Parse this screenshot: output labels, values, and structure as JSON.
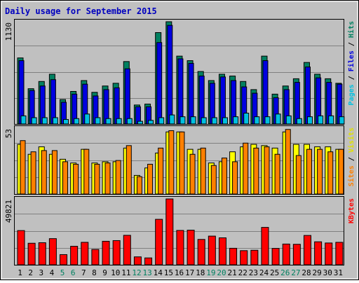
{
  "chart_data": [
    {
      "type": "bar",
      "title": "Daily usage for September 2015",
      "ymax_label": "1130",
      "ylim": [
        0,
        1130
      ],
      "right_label_parts": [
        {
          "text": "Pages",
          "color": "#00c0e0"
        },
        {
          "text": " / ",
          "color": "#000000"
        },
        {
          "text": "Files",
          "color": "#0000e0"
        },
        {
          "text": " / ",
          "color": "#000000"
        },
        {
          "text": "Hits",
          "color": "#008060"
        }
      ],
      "categories": [
        "1",
        "2",
        "3",
        "4",
        "5",
        "6",
        "7",
        "8",
        "9",
        "10",
        "11",
        "12",
        "13",
        "14",
        "15",
        "16",
        "17",
        "18",
        "19",
        "20",
        "21",
        "22",
        "23",
        "24",
        "25",
        "26",
        "27",
        "28",
        "29",
        "30",
        "31"
      ],
      "weekend_days": [
        "5",
        "6",
        "12",
        "13",
        "19",
        "20",
        "26",
        "27"
      ],
      "series": [
        {
          "name": "Hits",
          "color": "#008060",
          "values": [
            730,
            390,
            470,
            550,
            270,
            360,
            480,
            350,
            420,
            450,
            690,
            210,
            220,
            1010,
            1130,
            750,
            700,
            580,
            480,
            550,
            530,
            470,
            380,
            750,
            330,
            420,
            500,
            680,
            550,
            500,
            450
          ]
        },
        {
          "name": "Files",
          "color": "#0000e0",
          "values": [
            700,
            370,
            420,
            490,
            240,
            330,
            440,
            310,
            380,
            400,
            610,
            190,
            190,
            900,
            1090,
            720,
            670,
            530,
            450,
            520,
            480,
            410,
            340,
            700,
            290,
            380,
            460,
            630,
            510,
            460,
            440
          ]
        },
        {
          "name": "Pages",
          "color": "#00c0e0",
          "values": [
            90,
            70,
            70,
            70,
            50,
            60,
            110,
            70,
            60,
            60,
            60,
            30,
            40,
            70,
            100,
            80,
            80,
            70,
            70,
            70,
            80,
            120,
            80,
            80,
            110,
            90,
            60,
            80,
            90,
            90,
            80
          ]
        }
      ]
    },
    {
      "type": "bar",
      "ymax_label": "53",
      "ylim": [
        0,
        53
      ],
      "right_label_parts": [
        {
          "text": "Sites",
          "color": "#ff8000"
        },
        {
          "text": " / ",
          "color": "#000000"
        },
        {
          "text": "Visits",
          "color": "#e0e000"
        }
      ],
      "series": [
        {
          "name": "Visits",
          "color": "#ffff00",
          "values": [
            40,
            32,
            38,
            32,
            28,
            25,
            36,
            25,
            26,
            26,
            37,
            15,
            21,
            33,
            50,
            50,
            36,
            36,
            25,
            26,
            34,
            38,
            40,
            39,
            37,
            50,
            40,
            40,
            38,
            38,
            36
          ]
        },
        {
          "name": "Sites",
          "color": "#ff8000",
          "values": [
            43,
            34,
            35,
            35,
            26,
            24,
            36,
            24,
            25,
            27,
            39,
            14,
            24,
            37,
            51,
            50,
            32,
            37,
            23,
            29,
            26,
            41,
            37,
            38,
            32,
            52,
            31,
            36,
            36,
            34,
            36
          ]
        }
      ]
    },
    {
      "type": "bar",
      "ymax_label": "49821",
      "ylim": [
        0,
        49821
      ],
      "right_label_parts": [
        {
          "text": "KBytes",
          "color": "#ff0000"
        }
      ],
      "series": [
        {
          "name": "KBytes",
          "color": "#ff0000",
          "values": [
            25900,
            16300,
            16700,
            19800,
            7700,
            14000,
            17000,
            11600,
            17800,
            18300,
            22300,
            6000,
            5200,
            34400,
            49821,
            26000,
            26200,
            19200,
            21700,
            20400,
            12500,
            10700,
            11000,
            28300,
            12400,
            15700,
            15500,
            22200,
            17400,
            16500,
            17000
          ]
        }
      ]
    }
  ]
}
